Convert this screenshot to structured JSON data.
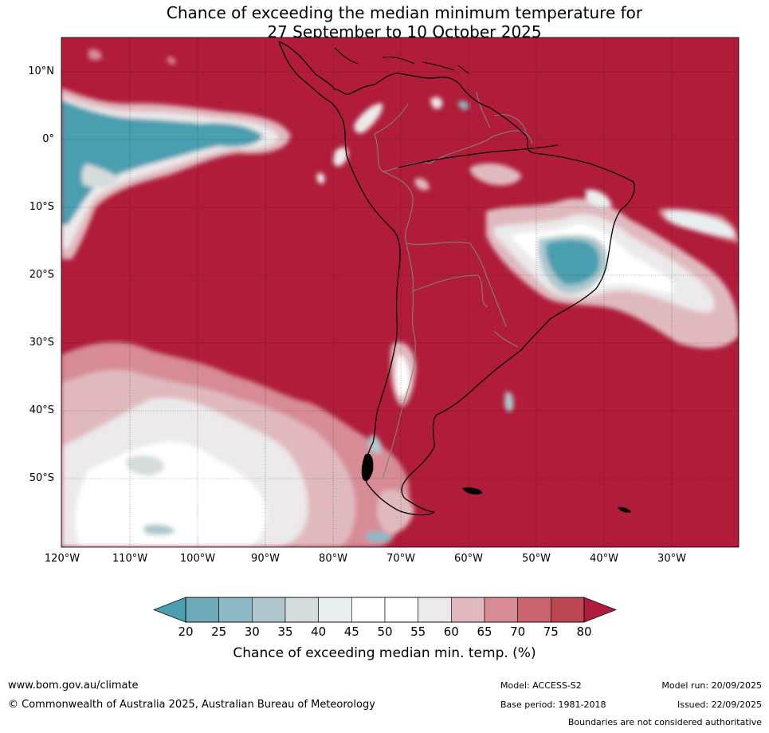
{
  "title": {
    "line1": "Chance of exceeding the median minimum temperature for",
    "line2": "27 September to 10 October 2025"
  },
  "latitude_labels": [
    "10°N",
    "0°",
    "10°S",
    "20°S",
    "30°S",
    "40°S",
    "50°S"
  ],
  "longitude_labels": [
    "120°W",
    "110°W",
    "100°W",
    "90°W",
    "80°W",
    "70°W",
    "60°W",
    "50°W",
    "40°W",
    "30°W"
  ],
  "colorbar": {
    "ticks": [
      "20",
      "25",
      "30",
      "35",
      "40",
      "45",
      "50",
      "55",
      "60",
      "65",
      "70",
      "75",
      "80"
    ],
    "label": "Chance of exceeding median min. temp. (%)",
    "colors": [
      "#4a9eb0",
      "#6eaab8",
      "#8cb9c4",
      "#afc7cc",
      "#d4dcdc",
      "#e9eff1",
      "#ffffff",
      "#ffffff",
      "#ebe9ea",
      "#e0b9be",
      "#d68b95",
      "#c9656f",
      "#bd4653",
      "#b01c3a"
    ]
  },
  "palette": {
    "high": "#b01c3a",
    "low": "#4a9eb0",
    "coast": "#000000",
    "borders": "#808080"
  },
  "footer": {
    "website": "www.bom.gov.au/climate",
    "copyright": "© Commonwealth of Australia 2025, Australian Bureau of Meteorology",
    "model": "Model: ACCESS-S2",
    "base_period": "Base period: 1981-2018",
    "model_run": "Model run: 20/09/2025",
    "issued": "Issued: 22/09/2025",
    "disclaimer": "Boundaries are not considered authoritative"
  }
}
